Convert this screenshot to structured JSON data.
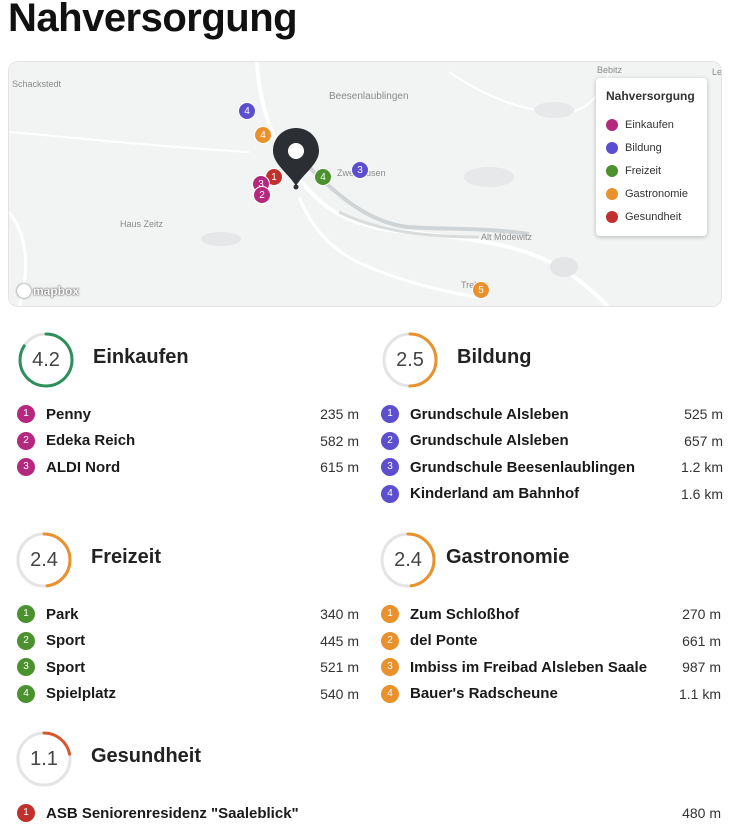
{
  "page": {
    "title": "Nahversorgung"
  },
  "colors": {
    "einkaufen": "#b5287f",
    "bildung": "#5b4fcf",
    "freizeit": "#4b922e",
    "gastronomie": "#e8912d",
    "gesundheit": "#c0302c",
    "gauge_track": "#e4e4e4",
    "gauge_high": "#2f8f5b"
  },
  "map": {
    "places": [
      "Schackstedt",
      "Beesenlaublingen",
      "Bebitz",
      "Le",
      "Zweihausen",
      "Haus Zeitz",
      "Alt Mödewitz",
      "Trebitz"
    ],
    "attribution": "mapbox",
    "markers": [
      {
        "category": "bildung",
        "label": "4"
      },
      {
        "category": "gastronomie",
        "label": "4"
      },
      {
        "category": "bildung",
        "label": "3"
      },
      {
        "category": "freizeit",
        "label": "4"
      },
      {
        "category": "gesundheit",
        "label": "1"
      },
      {
        "category": "einkaufen",
        "label": "3"
      },
      {
        "category": "einkaufen",
        "label": "2"
      },
      {
        "category": "gastronomie",
        "label": "5"
      }
    ],
    "legend": {
      "title": "Nahversorgung",
      "items": [
        {
          "label": "Einkaufen",
          "color": "#b5287f"
        },
        {
          "label": "Bildung",
          "color": "#5b4fcf"
        },
        {
          "label": "Freizeit",
          "color": "#4b922e"
        },
        {
          "label": "Gastronomie",
          "color": "#e8912d"
        },
        {
          "label": "Gesundheit",
          "color": "#c0302c"
        }
      ]
    }
  },
  "categories": [
    {
      "title": "Einkaufen",
      "score": "4.2",
      "score_fraction": 0.84,
      "gauge_color": "#2f8f5b",
      "color": "#b5287f",
      "items": [
        {
          "num": "1",
          "name": "Penny",
          "distance": "235 m"
        },
        {
          "num": "2",
          "name": "Edeka Reich",
          "distance": "582 m"
        },
        {
          "num": "3",
          "name": "ALDI Nord",
          "distance": "615 m"
        }
      ]
    },
    {
      "title": "Bildung",
      "score": "2.5",
      "score_fraction": 0.5,
      "gauge_color": "#e8912d",
      "color": "#5b4fcf",
      "items": [
        {
          "num": "1",
          "name": "Grundschule Alsleben",
          "distance": "525 m"
        },
        {
          "num": "2",
          "name": "Grundschule Alsleben",
          "distance": "657 m"
        },
        {
          "num": "3",
          "name": "Grundschule Beesenlaublingen",
          "distance": "1.2 km"
        },
        {
          "num": "4",
          "name": "Kinderland am Bahnhof",
          "distance": "1.6 km"
        }
      ]
    },
    {
      "title": "Freizeit",
      "score": "2.4",
      "score_fraction": 0.48,
      "gauge_color": "#e8912d",
      "color": "#4b922e",
      "items": [
        {
          "num": "1",
          "name": "Park",
          "distance": "340 m"
        },
        {
          "num": "2",
          "name": "Sport",
          "distance": "445 m"
        },
        {
          "num": "3",
          "name": "Sport",
          "distance": "521 m"
        },
        {
          "num": "4",
          "name": "Spielplatz",
          "distance": "540 m"
        }
      ]
    },
    {
      "title": "Gastronomie",
      "score": "2.4",
      "score_fraction": 0.48,
      "gauge_color": "#e8912d",
      "color": "#e8912d",
      "items": [
        {
          "num": "1",
          "name": "Zum Schloßhof",
          "distance": "270 m"
        },
        {
          "num": "2",
          "name": "del Ponte",
          "distance": "661 m"
        },
        {
          "num": "3",
          "name": "Imbiss im Freibad Alsleben Saale",
          "distance": "987 m"
        },
        {
          "num": "4",
          "name": "Bauer's Radscheune",
          "distance": "1.1 km"
        }
      ]
    },
    {
      "title": "Gesundheit",
      "score": "1.1",
      "score_fraction": 0.22,
      "gauge_color": "#d9572f",
      "color": "#c0302c",
      "items": [
        {
          "num": "1",
          "name": "ASB Seniorenresidenz \"Saaleblick\"",
          "distance": "480 m"
        }
      ]
    }
  ]
}
